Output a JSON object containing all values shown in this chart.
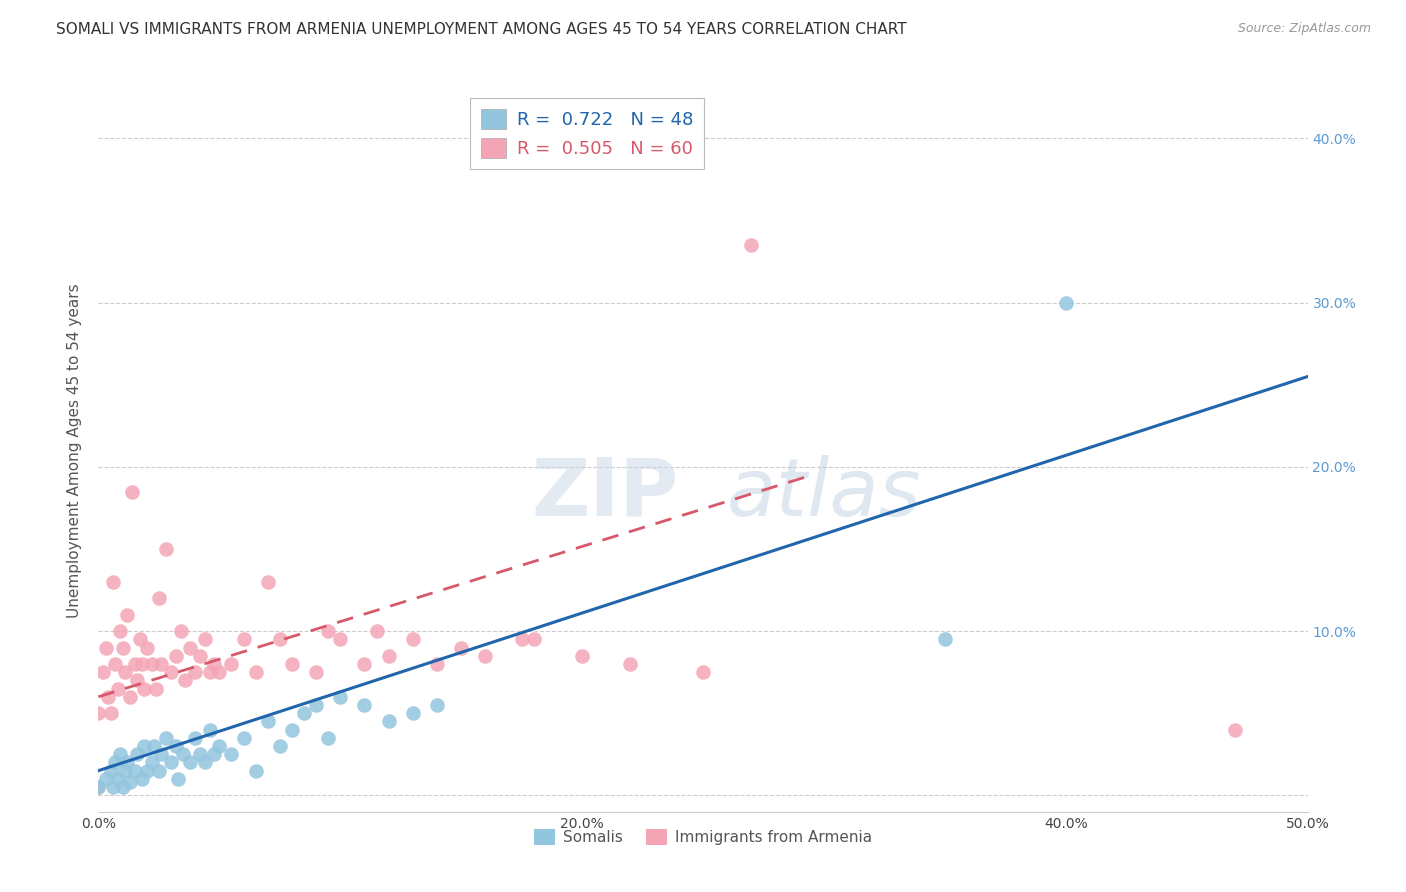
{
  "title": "SOMALI VS IMMIGRANTS FROM ARMENIA UNEMPLOYMENT AMONG AGES 45 TO 54 YEARS CORRELATION CHART",
  "source": "Source: ZipAtlas.com",
  "ylabel": "Unemployment Among Ages 45 to 54 years",
  "xlim": [
    0.0,
    0.5
  ],
  "ylim": [
    -0.01,
    0.43
  ],
  "xticks": [
    0.0,
    0.1,
    0.2,
    0.3,
    0.4,
    0.5
  ],
  "xtick_labels": [
    "0.0%",
    "",
    "20.0%",
    "",
    "40.0%",
    "50.0%"
  ],
  "yticks": [
    0.0,
    0.1,
    0.2,
    0.3,
    0.4
  ],
  "ytick_labels": [
    "",
    "10.0%",
    "20.0%",
    "30.0%",
    "40.0%"
  ],
  "somali_R": 0.722,
  "somali_N": 48,
  "armenia_R": 0.505,
  "armenia_N": 60,
  "somali_color": "#92c5de",
  "armenia_color": "#f4a5b5",
  "somali_line_color": "#2166ac",
  "armenia_line_color": "#d6586a",
  "background_color": "#ffffff",
  "somali_line_x": [
    0.0,
    0.5
  ],
  "somali_line_y": [
    0.015,
    0.255
  ],
  "armenia_line_x": [
    0.0,
    0.295
  ],
  "armenia_line_y": [
    0.06,
    0.195
  ],
  "somali_x": [
    0.0,
    0.003,
    0.005,
    0.006,
    0.007,
    0.008,
    0.009,
    0.01,
    0.011,
    0.012,
    0.013,
    0.015,
    0.016,
    0.018,
    0.019,
    0.02,
    0.022,
    0.023,
    0.025,
    0.026,
    0.028,
    0.03,
    0.032,
    0.033,
    0.035,
    0.038,
    0.04,
    0.042,
    0.044,
    0.046,
    0.048,
    0.05,
    0.055,
    0.06,
    0.065,
    0.07,
    0.075,
    0.08,
    0.085,
    0.09,
    0.095,
    0.1,
    0.11,
    0.12,
    0.13,
    0.14,
    0.35,
    0.4
  ],
  "somali_y": [
    0.005,
    0.01,
    0.015,
    0.005,
    0.02,
    0.01,
    0.025,
    0.005,
    0.015,
    0.02,
    0.008,
    0.015,
    0.025,
    0.01,
    0.03,
    0.015,
    0.02,
    0.03,
    0.015,
    0.025,
    0.035,
    0.02,
    0.03,
    0.01,
    0.025,
    0.02,
    0.035,
    0.025,
    0.02,
    0.04,
    0.025,
    0.03,
    0.025,
    0.035,
    0.015,
    0.045,
    0.03,
    0.04,
    0.05,
    0.055,
    0.035,
    0.06,
    0.055,
    0.045,
    0.05,
    0.055,
    0.095,
    0.3
  ],
  "armenia_x": [
    0.0,
    0.0,
    0.002,
    0.003,
    0.004,
    0.005,
    0.006,
    0.007,
    0.008,
    0.009,
    0.01,
    0.011,
    0.012,
    0.013,
    0.014,
    0.015,
    0.016,
    0.017,
    0.018,
    0.019,
    0.02,
    0.022,
    0.024,
    0.025,
    0.026,
    0.028,
    0.03,
    0.032,
    0.034,
    0.036,
    0.038,
    0.04,
    0.042,
    0.044,
    0.046,
    0.048,
    0.05,
    0.055,
    0.06,
    0.065,
    0.07,
    0.075,
    0.08,
    0.09,
    0.095,
    0.1,
    0.11,
    0.115,
    0.12,
    0.13,
    0.14,
    0.15,
    0.16,
    0.175,
    0.18,
    0.2,
    0.22,
    0.25,
    0.27,
    0.47
  ],
  "armenia_y": [
    0.005,
    0.05,
    0.075,
    0.09,
    0.06,
    0.05,
    0.13,
    0.08,
    0.065,
    0.1,
    0.09,
    0.075,
    0.11,
    0.06,
    0.185,
    0.08,
    0.07,
    0.095,
    0.08,
    0.065,
    0.09,
    0.08,
    0.065,
    0.12,
    0.08,
    0.15,
    0.075,
    0.085,
    0.1,
    0.07,
    0.09,
    0.075,
    0.085,
    0.095,
    0.075,
    0.08,
    0.075,
    0.08,
    0.095,
    0.075,
    0.13,
    0.095,
    0.08,
    0.075,
    0.1,
    0.095,
    0.08,
    0.1,
    0.085,
    0.095,
    0.08,
    0.09,
    0.085,
    0.095,
    0.095,
    0.085,
    0.08,
    0.075,
    0.335,
    0.04
  ],
  "title_fontsize": 11,
  "axis_label_fontsize": 11,
  "tick_fontsize": 10,
  "right_ytick_color": "#5b9bd5",
  "watermark_color": "#ccd9e8"
}
